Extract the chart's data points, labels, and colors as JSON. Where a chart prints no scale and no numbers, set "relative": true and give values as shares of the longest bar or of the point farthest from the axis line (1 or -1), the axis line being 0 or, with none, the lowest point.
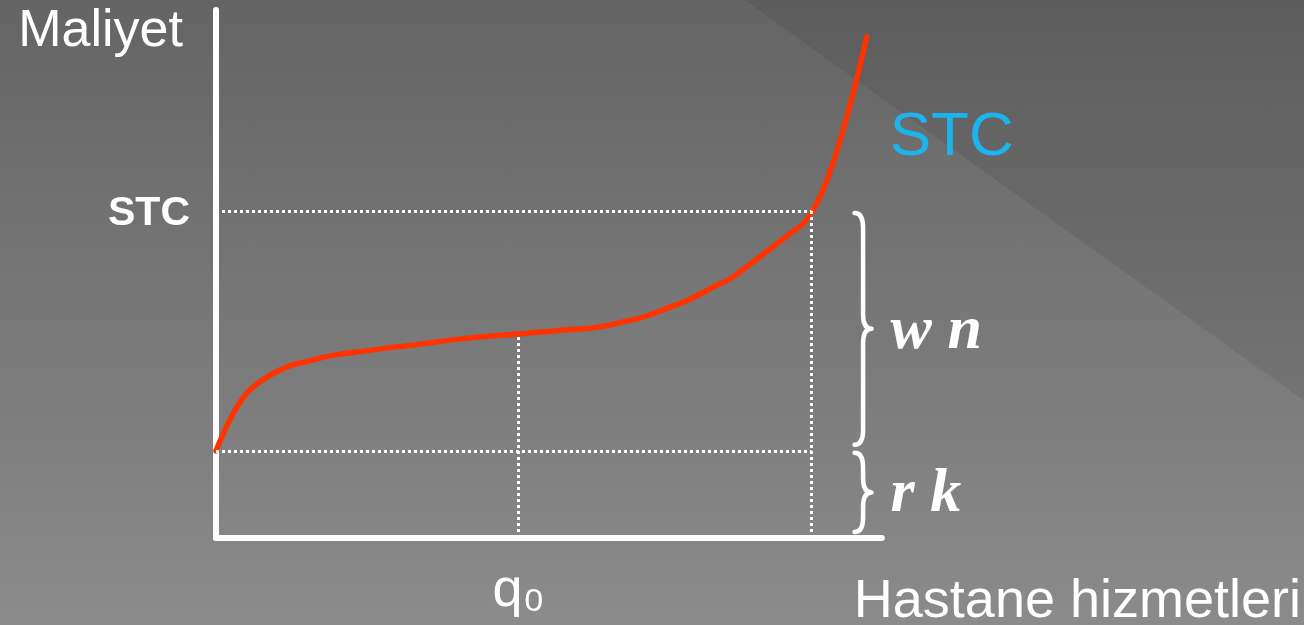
{
  "chart_data": {
    "type": "line",
    "relative": true,
    "xlabel": "Hastane hizmetleri",
    "ylabel": "Maliyet",
    "categories": [
      null,
      null,
      null,
      null,
      null,
      null,
      null,
      null,
      null,
      null,
      null,
      null,
      null,
      null,
      null,
      null,
      null,
      null,
      null,
      null,
      null,
      null,
      null,
      null,
      null,
      null,
      null,
      null,
      null,
      null,
      null,
      null,
      null,
      null,
      null,
      null,
      null,
      null,
      null,
      null,
      null,
      null,
      null,
      null,
      null
    ],
    "series": [
      {
        "name": "STC",
        "color": "#ff3300",
        "values": [
          0.174,
          0.241,
          0.288,
          0.314,
          0.332,
          0.345,
          0.352,
          0.36,
          0.366,
          0.37,
          0.374,
          0.378,
          0.382,
          0.385,
          0.389,
          0.393,
          0.397,
          0.4,
          0.403,
          0.405,
          0.407,
          0.41,
          0.412,
          0.415,
          0.417,
          0.42,
          0.425,
          0.432,
          0.439,
          0.449,
          0.461,
          0.472,
          0.487,
          0.503,
          0.518,
          0.54,
          0.563,
          0.586,
          0.609,
          0.634,
          0.687,
          0.77,
          0.876,
          1,
          null
        ]
      }
    ],
    "ref_lines": [
      {
        "axis": "y",
        "value": 0.653,
        "label": "STC",
        "color": "#ffffff",
        "line_style": "dotted"
      },
      {
        "axis": "y",
        "value": 0.174,
        "color": "#ffffff",
        "line_style": "dotted"
      }
    ],
    "annotations": [
      {
        "text": "q₀",
        "y": 0.407
      },
      "w n",
      "r k"
    ]
  }
}
